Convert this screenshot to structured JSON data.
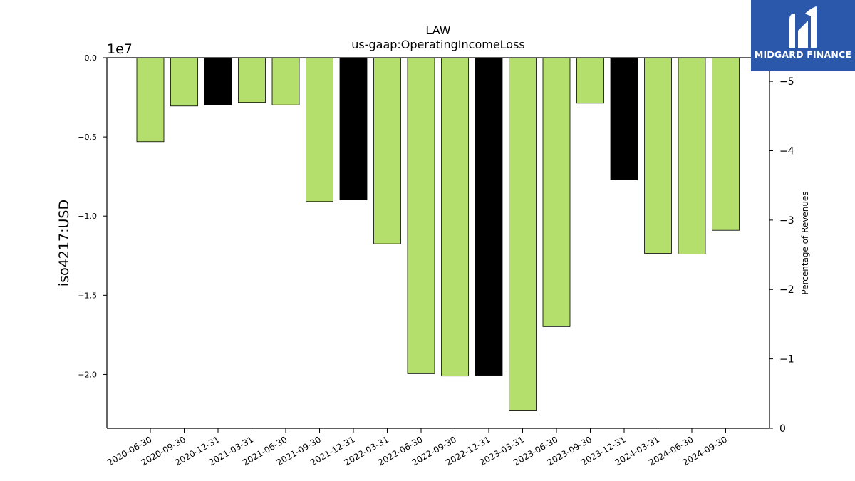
{
  "chart_data": {
    "type": "bar",
    "title": "LAW",
    "subtitle": "us-gaap:OperatingIncomeLoss",
    "ylabel": "iso4217:USD",
    "y_offset_label": "1e7",
    "y2label": "Percentage of Revenues",
    "ylim": [
      -23400000.0,
      0
    ],
    "yticks": [
      0.0,
      -0.5,
      -1.0,
      -1.5,
      -2.0
    ],
    "ytick_labels": [
      "0.0",
      "−0.5",
      "−1.0",
      "−1.5",
      "−2.0"
    ],
    "y2lim": [
      0,
      5.34
    ],
    "y2ticks": [
      0,
      1,
      2,
      3,
      4,
      5
    ],
    "y2tick_labels": [
      "0",
      "−1",
      "−2",
      "−3",
      "−4",
      "−5"
    ],
    "categories": [
      "2020-06-30",
      "2020-09-30",
      "2020-12-31",
      "2021-03-31",
      "2021-06-30",
      "2021-09-30",
      "2021-12-31",
      "2022-03-31",
      "2022-06-30",
      "2022-09-30",
      "2022-12-31",
      "2023-03-31",
      "2023-06-30",
      "2023-09-30",
      "2023-12-31",
      "2024-03-31",
      "2024-06-30",
      "2024-09-30"
    ],
    "values": [
      -5300000,
      -3050000,
      -2980000,
      -2820000,
      -2980000,
      -9080000,
      -8980000,
      -11750000,
      -19950000,
      -20100000,
      -20050000,
      -22300000,
      -16980000,
      -2870000,
      -7720000,
      -12350000,
      -12400000,
      -10900000
    ],
    "bar_colors": [
      "#b5df6c",
      "#b5df6c",
      "#000000",
      "#b5df6c",
      "#b5df6c",
      "#b5df6c",
      "#000000",
      "#b5df6c",
      "#b5df6c",
      "#b5df6c",
      "#000000",
      "#b5df6c",
      "#b5df6c",
      "#b5df6c",
      "#000000",
      "#b5df6c",
      "#b5df6c",
      "#b5df6c"
    ],
    "grid": false
  },
  "logo": {
    "text": "MIDGARD FINANCE",
    "background": "#2b58ab",
    "color": "#ffffff"
  }
}
